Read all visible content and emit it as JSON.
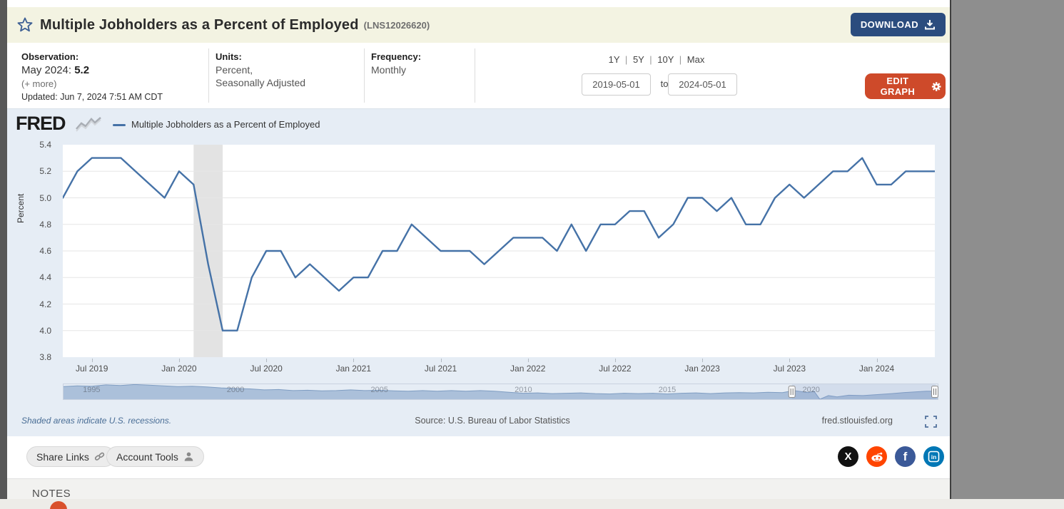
{
  "header": {
    "title": "Multiple Jobholders as a Percent of Employed",
    "series_code": "(LNS12026620)",
    "download_label": "DOWNLOAD"
  },
  "info": {
    "observation": {
      "label": "Observation:",
      "date_label": "May 2024:",
      "value": "5.2",
      "more_label": "(+ more)",
      "updated": "Updated: Jun 7, 2024 7:51 AM CDT"
    },
    "units": {
      "label": "Units:",
      "line1": "Percent,",
      "line2": "Seasonally Adjusted"
    },
    "frequency": {
      "label": "Frequency:",
      "value": "Monthly"
    },
    "range": {
      "presets": [
        "1Y",
        "5Y",
        "10Y",
        "Max"
      ],
      "separator": "|",
      "start_date": "2019-05-01",
      "to_label": "to",
      "end_date": "2024-05-01"
    },
    "edit_graph_label": "EDIT GRAPH"
  },
  "chart": {
    "brand": "FRED",
    "legend_label": "Multiple Jobholders as a Percent of Employed",
    "ylabel": "Percent",
    "recession_note": "Shaded areas indicate U.S. recessions.",
    "source": "Source: U.S. Bureau of Labor Statistics",
    "site_url": "fred.stlouisfed.org"
  },
  "footer_bar": {
    "share_label": "Share Links",
    "account_label": "Account Tools",
    "social": [
      {
        "name": "x-twitter",
        "color": "#111111"
      },
      {
        "name": "reddit",
        "color": "#ff4500"
      },
      {
        "name": "facebook",
        "color": "#3b5998"
      },
      {
        "name": "linkedin",
        "color": "#0077b5"
      }
    ]
  },
  "notes": {
    "title": "NOTES"
  },
  "colors": {
    "line": "#4572a7",
    "recession_band": "#e3e3e3",
    "gridline": "#e6e6e6",
    "plot_bg": "#ffffff",
    "chart_bg": "#e6edf5",
    "nav_fill": "#abc0da",
    "nav_stroke": "#7f9dc2",
    "download_btn": "#2b4c7e",
    "edit_btn": "#ce4a2a",
    "header_bg": "#f3f3e2"
  },
  "chart_data": {
    "type": "line",
    "series_name": "Multiple Jobholders as a Percent of Employed",
    "units": "Percent, Seasonally Adjusted",
    "frequency": "Monthly",
    "start": "2019-05",
    "end": "2024-05",
    "values": [
      5.0,
      5.2,
      5.3,
      5.3,
      5.3,
      5.2,
      5.1,
      5.0,
      5.2,
      5.1,
      4.5,
      4.0,
      4.0,
      4.4,
      4.6,
      4.6,
      4.4,
      4.5,
      4.4,
      4.3,
      4.4,
      4.4,
      4.6,
      4.6,
      4.8,
      4.7,
      4.6,
      4.6,
      4.6,
      4.5,
      4.6,
      4.7,
      4.7,
      4.7,
      4.6,
      4.8,
      4.6,
      4.8,
      4.8,
      4.9,
      4.9,
      4.7,
      4.8,
      5.0,
      5.0,
      4.9,
      5.0,
      4.8,
      4.8,
      5.0,
      5.1,
      5.0,
      5.1,
      5.2,
      5.2,
      5.3,
      5.1,
      5.1,
      5.2,
      5.2,
      5.2
    ],
    "ylabel": "Percent",
    "ylim": [
      3.8,
      5.4
    ],
    "yticks": [
      5.4,
      5.2,
      5.0,
      4.8,
      4.6,
      4.4,
      4.2,
      4.0,
      3.8
    ],
    "xticks": [
      {
        "i": 2,
        "label": "Jul 2019"
      },
      {
        "i": 8,
        "label": "Jan 2020"
      },
      {
        "i": 14,
        "label": "Jul 2020"
      },
      {
        "i": 20,
        "label": "Jan 2021"
      },
      {
        "i": 26,
        "label": "Jul 2021"
      },
      {
        "i": 32,
        "label": "Jan 2022"
      },
      {
        "i": 38,
        "label": "Jul 2022"
      },
      {
        "i": 44,
        "label": "Jan 2023"
      },
      {
        "i": 50,
        "label": "Jul 2023"
      },
      {
        "i": 56,
        "label": "Jan 2024"
      }
    ],
    "recession_months": {
      "from_i": 9,
      "to_i": 11,
      "note": "Feb 2020 - Apr 2020"
    },
    "navigator": {
      "x_range": [
        1994,
        2024.42
      ],
      "selection": [
        2019.33,
        2024.33
      ],
      "year_labels": [
        1995,
        2000,
        2005,
        2010,
        2015,
        2020
      ],
      "vlim": [
        3.9,
        6.35
      ],
      "points": [
        [
          1994,
          5.9
        ],
        [
          1994.5,
          6.0
        ],
        [
          1995,
          5.95
        ],
        [
          1995.5,
          6.15
        ],
        [
          1996,
          6.05
        ],
        [
          1996.5,
          6.2
        ],
        [
          1997,
          6.1
        ],
        [
          1997.5,
          6.0
        ],
        [
          1998,
          5.9
        ],
        [
          1998.5,
          5.95
        ],
        [
          1999,
          5.85
        ],
        [
          1999.5,
          5.7
        ],
        [
          2000,
          5.6
        ],
        [
          2000.5,
          5.55
        ],
        [
          2001,
          5.4
        ],
        [
          2001.5,
          5.45
        ],
        [
          2002,
          5.3
        ],
        [
          2002.5,
          5.35
        ],
        [
          2003,
          5.25
        ],
        [
          2003.5,
          5.3
        ],
        [
          2004,
          5.4
        ],
        [
          2004.5,
          5.3
        ],
        [
          2005,
          5.35
        ],
        [
          2005.5,
          5.25
        ],
        [
          2006,
          5.2
        ],
        [
          2006.5,
          5.3
        ],
        [
          2007,
          5.2
        ],
        [
          2007.5,
          5.3
        ],
        [
          2008,
          5.2
        ],
        [
          2008.5,
          5.3
        ],
        [
          2009,
          5.2
        ],
        [
          2009.5,
          5.05
        ],
        [
          2010,
          4.9
        ],
        [
          2010.5,
          4.95
        ],
        [
          2011,
          4.85
        ],
        [
          2011.5,
          4.9
        ],
        [
          2012,
          4.95
        ],
        [
          2012.5,
          4.85
        ],
        [
          2013,
          4.8
        ],
        [
          2013.5,
          4.9
        ],
        [
          2014,
          4.85
        ],
        [
          2014.5,
          4.9
        ],
        [
          2015,
          4.8
        ],
        [
          2015.5,
          4.9
        ],
        [
          2016,
          4.95
        ],
        [
          2016.5,
          4.85
        ],
        [
          2017,
          4.95
        ],
        [
          2017.5,
          5.0
        ],
        [
          2018,
          4.95
        ],
        [
          2018.5,
          5.05
        ],
        [
          2019,
          5.0
        ],
        [
          2019.4,
          5.3
        ],
        [
          2019.9,
          5.0
        ],
        [
          2020.1,
          5.2
        ],
        [
          2020.3,
          4.0
        ],
        [
          2020.6,
          4.55
        ],
        [
          2020.9,
          4.35
        ],
        [
          2021.3,
          4.6
        ],
        [
          2021.8,
          4.55
        ],
        [
          2022.3,
          4.7
        ],
        [
          2022.8,
          4.85
        ],
        [
          2023.2,
          5.0
        ],
        [
          2023.6,
          5.1
        ],
        [
          2024,
          5.2
        ],
        [
          2024.4,
          5.2
        ]
      ]
    }
  }
}
